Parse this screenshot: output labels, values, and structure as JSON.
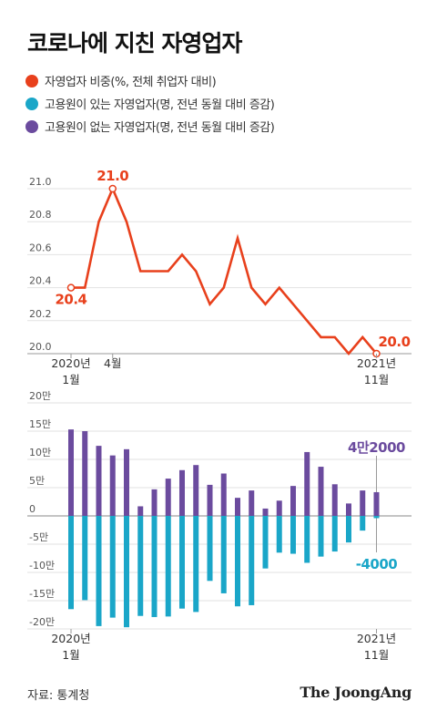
{
  "title": "코로나에 지친 자영업자",
  "legend": [
    {
      "label": "자영업자 비중(%, 전체 취업자 대비)",
      "color": "#e8401c"
    },
    {
      "label": "고용원이 있는 자영업자(명, 전년 동월 대비 증감)",
      "color": "#1aa6c8"
    },
    {
      "label": "고용원이 없는 자영업자(명, 전년 동월 대비 증감)",
      "color": "#6b4b9e"
    }
  ],
  "source": "자료: 통계청",
  "brand": "The JoongAng",
  "chart_data": [
    {
      "type": "line",
      "series": [
        {
          "name": "자영업자 비중(%, 전체 취업자 대비)",
          "color": "#e8401c",
          "values": [
            20.4,
            20.4,
            20.8,
            21.0,
            20.8,
            20.5,
            20.5,
            20.5,
            20.6,
            20.5,
            20.3,
            20.4,
            20.7,
            20.4,
            20.3,
            20.4,
            20.3,
            20.2,
            20.1,
            20.1,
            20.0,
            20.1,
            20.0
          ]
        }
      ],
      "x_start": "2020년 1월",
      "x_end": "2021년 11월",
      "x_tick_labels": [
        {
          "index": 0,
          "lines": [
            "2020년",
            "1월"
          ]
        },
        {
          "index": 3,
          "lines": [
            "4월"
          ]
        },
        {
          "index": 22,
          "lines": [
            "2021년",
            "11월"
          ]
        }
      ],
      "ylim": [
        20.0,
        21.0
      ],
      "y_ticks": [
        "20.0",
        "20.2",
        "20.4",
        "20.6",
        "20.8",
        "21.0"
      ],
      "annotations": [
        {
          "index": 0,
          "text": "20.4"
        },
        {
          "index": 3,
          "text": "21.0"
        },
        {
          "index": 22,
          "text": "20.0"
        }
      ],
      "grid": true
    },
    {
      "type": "bar",
      "x_start": "2020년 1월",
      "x_end": "2021년 11월",
      "x_tick_labels": [
        {
          "index": 0,
          "lines": [
            "2020년",
            "1월"
          ]
        },
        {
          "index": 22,
          "lines": [
            "2021년",
            "11월"
          ]
        }
      ],
      "ylim": [
        -200000,
        200000
      ],
      "y_ticks": [
        "20만",
        "15만",
        "10만",
        "5만",
        "0",
        "-5만",
        "-10만",
        "-15만",
        "-20만"
      ],
      "series": [
        {
          "name": "고용원이 없는 자영업자(명, 전년 동월 대비 증감)",
          "color": "#6b4b9e",
          "values": [
            153000,
            150000,
            124000,
            107000,
            118000,
            17000,
            47000,
            66000,
            81000,
            90000,
            55000,
            75000,
            32000,
            45000,
            13000,
            27000,
            53000,
            113000,
            87000,
            56000,
            22000,
            45000,
            42000
          ]
        },
        {
          "name": "고용원이 있는 자영업자(명, 전년 동월 대비 증감)",
          "color": "#1aa6c8",
          "values": [
            -165000,
            -149000,
            -195000,
            -180000,
            -197000,
            -177000,
            -179000,
            -178000,
            -164000,
            -170000,
            -115000,
            -137000,
            -160000,
            -158000,
            -93000,
            -65000,
            -67000,
            -83000,
            -72000,
            -63000,
            -47000,
            -26000,
            -4000
          ]
        }
      ],
      "annotations": [
        {
          "series": 0,
          "index": 22,
          "text": "4만2000"
        },
        {
          "series": 1,
          "index": 22,
          "text": "-4000"
        }
      ],
      "grid": true
    }
  ]
}
